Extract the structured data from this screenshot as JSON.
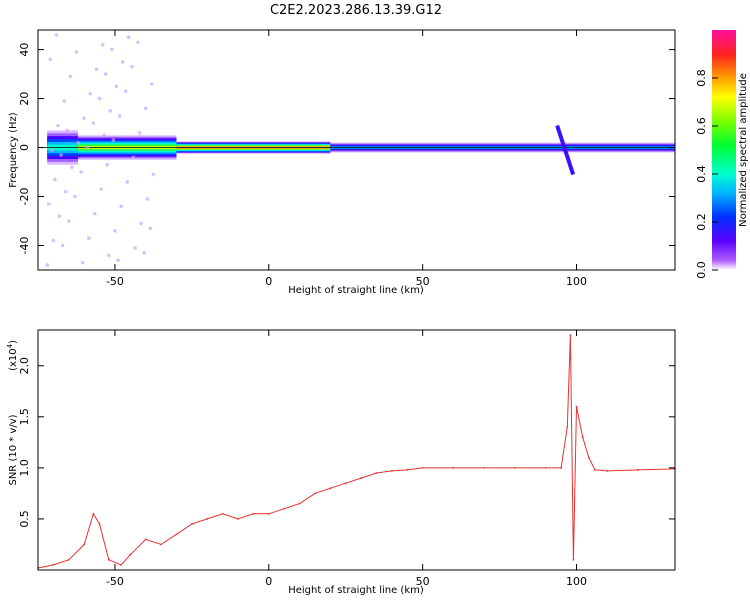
{
  "figure": {
    "title": "C2E2.2023.286.13.39.G12"
  },
  "chart_data": [
    {
      "type": "heatmap",
      "title": "C2E2.2023.286.13.39.G12",
      "xlabel": "Height of straight line (km)",
      "ylabel": "Frequency (Hz)",
      "xlim": [
        -75,
        132
      ],
      "ylim": [
        -50,
        48
      ],
      "xticks": [
        -50,
        0,
        50,
        100
      ],
      "yticks": [
        -40,
        -20,
        0,
        20,
        40
      ],
      "xtick_labels": [
        "-50",
        "0",
        "50",
        "100"
      ],
      "ytick_labels": [
        "-40",
        "-20",
        "0",
        "20",
        "40"
      ],
      "colorbar": {
        "label": "Normalized spectral amplitude",
        "range": [
          0.0,
          1.0
        ],
        "ticks": [
          0.0,
          0.2,
          0.4,
          0.6,
          0.8
        ],
        "tick_labels": [
          "0.0",
          "0.2",
          "0.4",
          "0.6",
          "0.8"
        ]
      },
      "band_center_hz": 0,
      "band_segments": [
        {
          "x": [
            -72,
            -62
          ],
          "halfwidth_hz": 7,
          "peak": 0.55
        },
        {
          "x": [
            -62,
            -30
          ],
          "halfwidth_hz": 5,
          "peak": 0.75
        },
        {
          "x": [
            -30,
            20
          ],
          "halfwidth_hz": 2.5,
          "peak": 0.95
        },
        {
          "x": [
            20,
            132
          ],
          "halfwidth_hz": 2,
          "peak": 0.45
        }
      ],
      "feature_at_km": 95
    },
    {
      "type": "line",
      "xlabel": "Height of straight line (km)",
      "ylabel": "SNR (10 * v/v)",
      "y_scale_label": "(x10",
      "y_scale_exponent": "4",
      "xlim": [
        -75,
        132
      ],
      "ylim": [
        0,
        2.35
      ],
      "xticks": [
        -50,
        0,
        50,
        100
      ],
      "yticks": [
        0.5,
        1.0,
        1.5,
        2.0
      ],
      "xtick_labels": [
        "-50",
        "0",
        "50",
        "100"
      ],
      "ytick_labels": [
        "0.5",
        "1.0",
        "1.5",
        "2.0"
      ],
      "series": [
        {
          "color": "#e63232",
          "x": [
            -75,
            -70,
            -65,
            -60,
            -57,
            -55,
            -52,
            -48,
            -45,
            -40,
            -35,
            -30,
            -25,
            -20,
            -15,
            -10,
            -5,
            0,
            5,
            10,
            15,
            20,
            25,
            30,
            35,
            40,
            45,
            50,
            60,
            70,
            80,
            90,
            95,
            97,
            98,
            99,
            100,
            102,
            104,
            106,
            110,
            120,
            132
          ],
          "values": [
            0.02,
            0.05,
            0.1,
            0.25,
            0.55,
            0.45,
            0.1,
            0.05,
            0.15,
            0.3,
            0.25,
            0.35,
            0.45,
            0.5,
            0.55,
            0.5,
            0.55,
            0.55,
            0.6,
            0.65,
            0.75,
            0.8,
            0.85,
            0.9,
            0.95,
            0.97,
            0.98,
            1.0,
            1.0,
            1.0,
            1.0,
            1.0,
            1.0,
            1.4,
            2.3,
            0.1,
            1.6,
            1.3,
            1.1,
            0.98,
            0.97,
            0.98,
            0.99
          ]
        }
      ]
    }
  ]
}
